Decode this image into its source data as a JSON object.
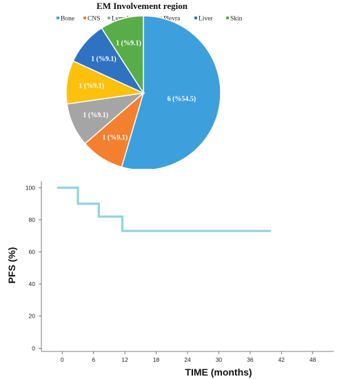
{
  "chart_data": [
    {
      "type": "pie",
      "title": "EM Involvement region",
      "legend_placement": "top",
      "categories": [
        "Bone",
        "CNS",
        "Lymph node",
        "Plevra",
        "Liver",
        "Skin"
      ],
      "values": [
        6,
        1,
        1,
        1,
        1,
        1
      ],
      "labels": [
        "6 (%54.5)",
        "1 (%9.1)",
        "1 (%9.1)",
        "1 (%9.1)",
        "1 (%9.1)",
        "1 (%9.1)"
      ],
      "colors": [
        "#3d9fdc",
        "#f2802e",
        "#a5a5a5",
        "#fdc00d",
        "#2f72c2",
        "#58ad48"
      ]
    },
    {
      "type": "line",
      "step": true,
      "xlabel": "TIME (months)",
      "ylabel": "PFS (%)",
      "xlim": [
        -4,
        52
      ],
      "ylim": [
        -2,
        104
      ],
      "xticks": [
        0,
        6,
        12,
        18,
        24,
        30,
        36,
        42,
        48
      ],
      "yticks": [
        0,
        20,
        40,
        60,
        80,
        100
      ],
      "grid": false,
      "series": [
        {
          "color": "#8fd3e4",
          "x": [
            -1,
            3,
            3,
            7,
            7,
            11.5,
            11.5,
            40
          ],
          "y": [
            100,
            100,
            90,
            90,
            82,
            82,
            73,
            73
          ]
        }
      ]
    }
  ]
}
